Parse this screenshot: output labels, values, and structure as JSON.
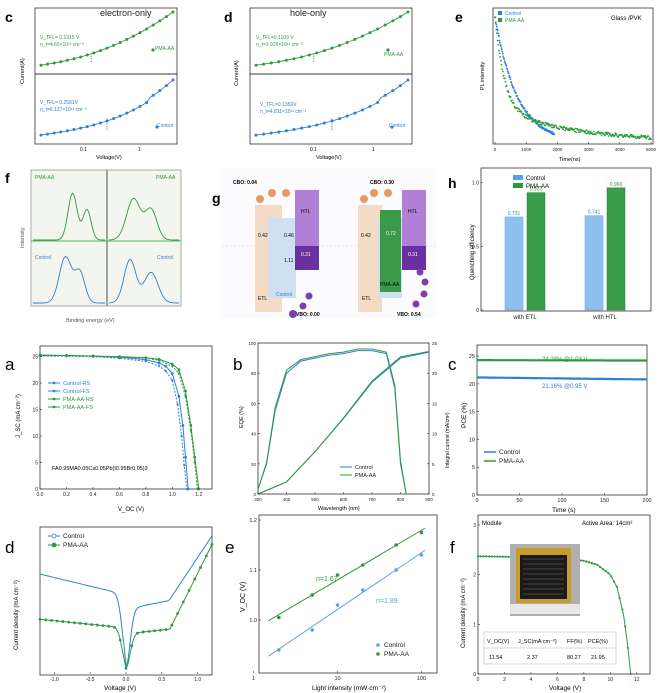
{
  "colors": {
    "green": "#2e9a3c",
    "blue": "#2f7fd8",
    "lightgreen": "#3bbd4c",
    "lightblue": "#5aa0e8",
    "dark": "#222222",
    "purple": "#7b3fb0",
    "orange": "#e69a62"
  },
  "panels": {
    "c_top": {
      "letter": "c",
      "title": "electron-only",
      "xlabel": "Voltage(V)",
      "ylabel": "Current(A)",
      "top": {
        "vtfl": "V_TFL= 0.1315 V",
        "nt": "n_t=4.65×10¹³ cm⁻³",
        "legend": "PMA-AA"
      },
      "bottom": {
        "vtfl": "V_TFL= 0.2581V",
        "nt": "n_t=6.127×10¹³ cm⁻³",
        "legend": "Control"
      },
      "xticks": [
        "0.1",
        "1"
      ]
    },
    "d_top": {
      "letter": "d",
      "title": "hole-only",
      "xlabel": "Voltage(V)",
      "ylabel": "Current(A)",
      "top": {
        "vtfl": "V_TFL=0.1109 V",
        "nt": "n_t=3.926×10¹³ cm⁻³",
        "legend": "PMA-AA"
      },
      "bottom": {
        "vtfl": "V_TFL=0.1359V",
        "nt": "n_t=4.811×10¹³ cm⁻³",
        "legend": "Control"
      },
      "xticks": [
        "0.1",
        "1"
      ]
    },
    "e_top": {
      "letter": "e",
      "note": "Glass /PVK",
      "xlabel": "Time(ns)",
      "ylabel": "PL intensity",
      "legend": [
        "Control",
        "PMA-AA"
      ],
      "xticks": [
        "0",
        "1000",
        "2000",
        "3000",
        "4000",
        "5000"
      ]
    },
    "f_top": {
      "letter": "f",
      "xlabel": "Binding energy (eV)",
      "ylabel": "Intensity",
      "labels_top": [
        "PMA-AA",
        "PMA-AA"
      ],
      "labels_bottom": [
        "Control",
        "Control"
      ]
    },
    "g": {
      "letter": "g",
      "left": {
        "cbo": "CBO: 0.04",
        "vbo": "VBO: 0.00",
        "etl": "ETL",
        "htl": "HTL",
        "v1": "0.42",
        "v2": "0.46",
        "v3": "1.11",
        "v4": "0.31",
        "tag": "Control"
      },
      "right": {
        "cbo": "CBO: 0.30",
        "vbo": "VBO: 0.54",
        "etl": "ETL",
        "htl": "HTL",
        "v1": "0.42",
        "v2": "0.72",
        "v3": "0.31",
        "tag": "PMA-AA"
      },
      "electron": "e⁻",
      "hole": "h⁺"
    },
    "h": {
      "letter": "h",
      "ylabel": "Quenching efficiency",
      "legend": [
        "Control",
        "PMA-AA"
      ],
      "categories": [
        "with ETL",
        "with HTL"
      ],
      "yticks": [
        "0",
        "0.5",
        "1.0"
      ]
    },
    "a": {
      "letter": "a",
      "xlabel": "V_OC (V)",
      "ylabel": "J_SC (mA cm⁻²)",
      "formula": "FA0.95MA0.05Cs0.05Pb(I0.95Br0.05)3",
      "legend": [
        "Control-RS",
        "Control-FS",
        "PMA-AA-RS",
        "PMA-AA-FS"
      ],
      "xticks": [
        "0.0",
        "0.2",
        "0.4",
        "0.6",
        "0.8",
        "1.0",
        "1.2"
      ],
      "yticks": [
        "0",
        "5",
        "10",
        "15",
        "20",
        "25"
      ]
    },
    "b": {
      "letter": "b",
      "xlabel": "Wavelength (nm)",
      "ylabel": "EQE (%)",
      "ylabel2": "Integral current (mA/cm²)",
      "legend": [
        "Control",
        "PMA-AA"
      ],
      "xticks": [
        "300",
        "400",
        "500",
        "600",
        "700",
        "800",
        "900"
      ],
      "yticks": [
        "0",
        "20",
        "40",
        "60",
        "80",
        "100"
      ],
      "y2ticks": [
        "0",
        "5",
        "10",
        "15",
        "20",
        "25"
      ]
    },
    "c_bot": {
      "letter": "c",
      "xlabel": "Time (s)",
      "ylabel": "PCE (%)",
      "ann_top": "24.28% @1.03 V",
      "ann_bottom": "21.16% @0.95 V",
      "legend": [
        "Control",
        "PMA-AA"
      ],
      "xticks": [
        "0",
        "50",
        "100",
        "150",
        "200"
      ],
      "yticks": [
        "0",
        "5",
        "10",
        "15",
        "20",
        "25"
      ]
    },
    "d_bot": {
      "letter": "d",
      "xlabel": "Voltage (V)",
      "ylabel": "Current density (mA cm⁻²)",
      "legend": [
        "Control",
        "PMA-AA"
      ],
      "xticks": [
        "-1.0",
        "-0.5",
        "0.0",
        "0.5",
        "1.0"
      ]
    },
    "e_bot": {
      "letter": "e",
      "xlabel": "Light intensity (mW·cm⁻²)",
      "ylabel": "V_OC (V)",
      "n_green": "n=1.67",
      "n_blue": "n=1.89",
      "legend": [
        "Control",
        "PMA-AA"
      ],
      "xticks": [
        "1",
        "10",
        "100"
      ],
      "yticks": [
        "1.0",
        "1.1",
        "1.2"
      ]
    },
    "f_bot": {
      "letter": "f",
      "title": "Module",
      "area": "Active Area: 14cm²",
      "xlabel": "Voltage (V)",
      "ylabel": "Current density (mA cm⁻²)",
      "table_headers": [
        "V_OC(V)",
        "J_SC(mA cm⁻²)",
        "FF(%)",
        "PCE(%)"
      ],
      "table_values": [
        "11.54",
        "2.37",
        "80.27",
        "21.95"
      ],
      "xticks": [
        "0",
        "2",
        "4",
        "6",
        "8",
        "10",
        "12"
      ],
      "yticks": [
        "0",
        "1",
        "2",
        "3"
      ]
    }
  },
  "chart_data": [
    {
      "type": "line",
      "title": "electron-only",
      "xlabel": "Voltage(V)",
      "ylabel": "Current(A)",
      "log_x": true,
      "log_y": true,
      "series": [
        {
          "name": "PMA-AA",
          "note": "V_TFL=0.1315 V"
        },
        {
          "name": "Control",
          "note": "V_TFL=0.2581V"
        }
      ]
    },
    {
      "type": "line",
      "title": "hole-only",
      "xlabel": "Voltage(V)",
      "ylabel": "Current(A)",
      "log_x": true,
      "log_y": true,
      "series": [
        {
          "name": "PMA-AA",
          "note": "V_TFL=0.1109 V"
        },
        {
          "name": "Control",
          "note": "V_TFL=0.1359V"
        }
      ]
    },
    {
      "type": "line",
      "xlabel": "Time(ns)",
      "ylabel": "PL intensity",
      "xlim": [
        0,
        5000
      ],
      "log_y": true,
      "series": [
        {
          "name": "Control"
        },
        {
          "name": "PMA-AA"
        }
      ]
    },
    {
      "type": "bar",
      "ylabel": "Quenching efficiency",
      "categories": [
        "with ETL",
        "with HTL"
      ],
      "ylim": [
        0,
        1.1
      ],
      "series": [
        {
          "name": "Control",
          "values": [
            0.731,
            0.741
          ]
        },
        {
          "name": "PMA-AA",
          "values": [
            0.922,
            0.96
          ]
        }
      ]
    },
    {
      "type": "line",
      "xlabel": "V_OC (V)",
      "ylabel": "J_SC (mA cm⁻²)",
      "xlim": [
        0,
        1.3
      ],
      "ylim": [
        0,
        27
      ],
      "series": [
        {
          "name": "Control-RS",
          "x": [
            0,
            0.2,
            0.4,
            0.6,
            0.8,
            0.9,
            0.95,
            1.0,
            1.05,
            1.08,
            1.1,
            1.12
          ],
          "y": [
            25.3,
            25.2,
            25.1,
            24.9,
            24.4,
            23.8,
            23.2,
            21.8,
            17.5,
            12,
            6,
            0
          ]
        },
        {
          "name": "Control-FS",
          "x": [
            0,
            0.2,
            0.4,
            0.6,
            0.8,
            0.9,
            0.95,
            1.0,
            1.04,
            1.07,
            1.09,
            1.11
          ],
          "y": [
            25.2,
            25.1,
            25.0,
            24.7,
            24.1,
            23.2,
            22.3,
            20.5,
            16,
            10,
            4.5,
            0
          ]
        },
        {
          "name": "PMA-AA-RS",
          "x": [
            0,
            0.2,
            0.4,
            0.6,
            0.8,
            0.9,
            1.0,
            1.05,
            1.1,
            1.14,
            1.17,
            1.2
          ],
          "y": [
            25.2,
            25.2,
            25.1,
            25.0,
            24.8,
            24.5,
            23.6,
            22.5,
            18.5,
            12,
            6,
            0
          ]
        },
        {
          "name": "PMA-AA-FS",
          "x": [
            0,
            0.2,
            0.4,
            0.6,
            0.8,
            0.9,
            1.0,
            1.05,
            1.1,
            1.14,
            1.17,
            1.19
          ],
          "y": [
            25.1,
            25.1,
            25.0,
            24.9,
            24.7,
            24.3,
            23.2,
            21.8,
            17.5,
            11,
            5,
            0
          ]
        }
      ]
    },
    {
      "type": "line",
      "xlabel": "Wavelength (nm)",
      "ylabel": "EQE (%)",
      "xlim": [
        300,
        900
      ],
      "ylim": [
        0,
        100
      ],
      "series": [
        {
          "name": "Control",
          "x": [
            300,
            330,
            360,
            400,
            450,
            500,
            550,
            600,
            650,
            700,
            750,
            780,
            800,
            820
          ],
          "y": [
            3,
            20,
            55,
            80,
            88,
            90,
            92,
            93,
            95,
            95,
            93,
            70,
            20,
            0
          ]
        },
        {
          "name": "PMA-AA",
          "x": [
            300,
            330,
            360,
            400,
            450,
            500,
            550,
            600,
            650,
            700,
            750,
            780,
            800,
            820
          ],
          "y": [
            3,
            21,
            57,
            82,
            89,
            91,
            93,
            94,
            96,
            96,
            94,
            72,
            22,
            0
          ]
        },
        {
          "name": "Control integral",
          "x": [
            300,
            400,
            500,
            600,
            700,
            800,
            900
          ],
          "y": [
            0,
            2,
            7,
            12.5,
            18.5,
            22.5,
            23.5
          ]
        },
        {
          "name": "PMA-AA integral",
          "x": [
            300,
            400,
            500,
            600,
            700,
            800,
            900
          ],
          "y": [
            0,
            2,
            7,
            12.6,
            18.7,
            22.7,
            23.6
          ]
        }
      ]
    },
    {
      "type": "line",
      "xlabel": "Time (s)",
      "ylabel": "PCE (%)",
      "xlim": [
        0,
        200
      ],
      "ylim": [
        0,
        27
      ],
      "series": [
        {
          "name": "Control",
          "x": [
            0,
            200
          ],
          "y": [
            21.16,
            20.8
          ]
        },
        {
          "name": "PMA-AA",
          "x": [
            0,
            200
          ],
          "y": [
            24.28,
            24.2
          ]
        }
      ]
    },
    {
      "type": "line",
      "xlabel": "Light intensity (mW·cm⁻²)",
      "ylabel": "V_OC (V)",
      "log_x": true,
      "ylim": [
        0.95,
        1.2
      ],
      "series": [
        {
          "name": "Control",
          "x": [
            2,
            5,
            10,
            20,
            50,
            100
          ],
          "y": [
            0.94,
            0.98,
            1.03,
            1.06,
            1.1,
            1.13
          ]
        },
        {
          "name": "PMA-AA",
          "x": [
            2,
            5,
            10,
            20,
            50,
            100
          ],
          "y": [
            1.005,
            1.05,
            1.09,
            1.11,
            1.15,
            1.175
          ]
        }
      ]
    },
    {
      "type": "line",
      "title": "Module",
      "xlabel": "Voltage (V)",
      "ylabel": "Current density (mA cm⁻²)",
      "xlim": [
        0,
        13
      ],
      "ylim": [
        0,
        3.2
      ],
      "series": [
        {
          "name": "Module",
          "x": [
            0,
            2,
            4,
            6,
            8,
            9,
            10,
            10.5,
            11,
            11.3,
            11.54
          ],
          "y": [
            2.37,
            2.36,
            2.35,
            2.33,
            2.28,
            2.2,
            2.0,
            1.75,
            1.2,
            0.6,
            0
          ]
        }
      ]
    }
  ]
}
